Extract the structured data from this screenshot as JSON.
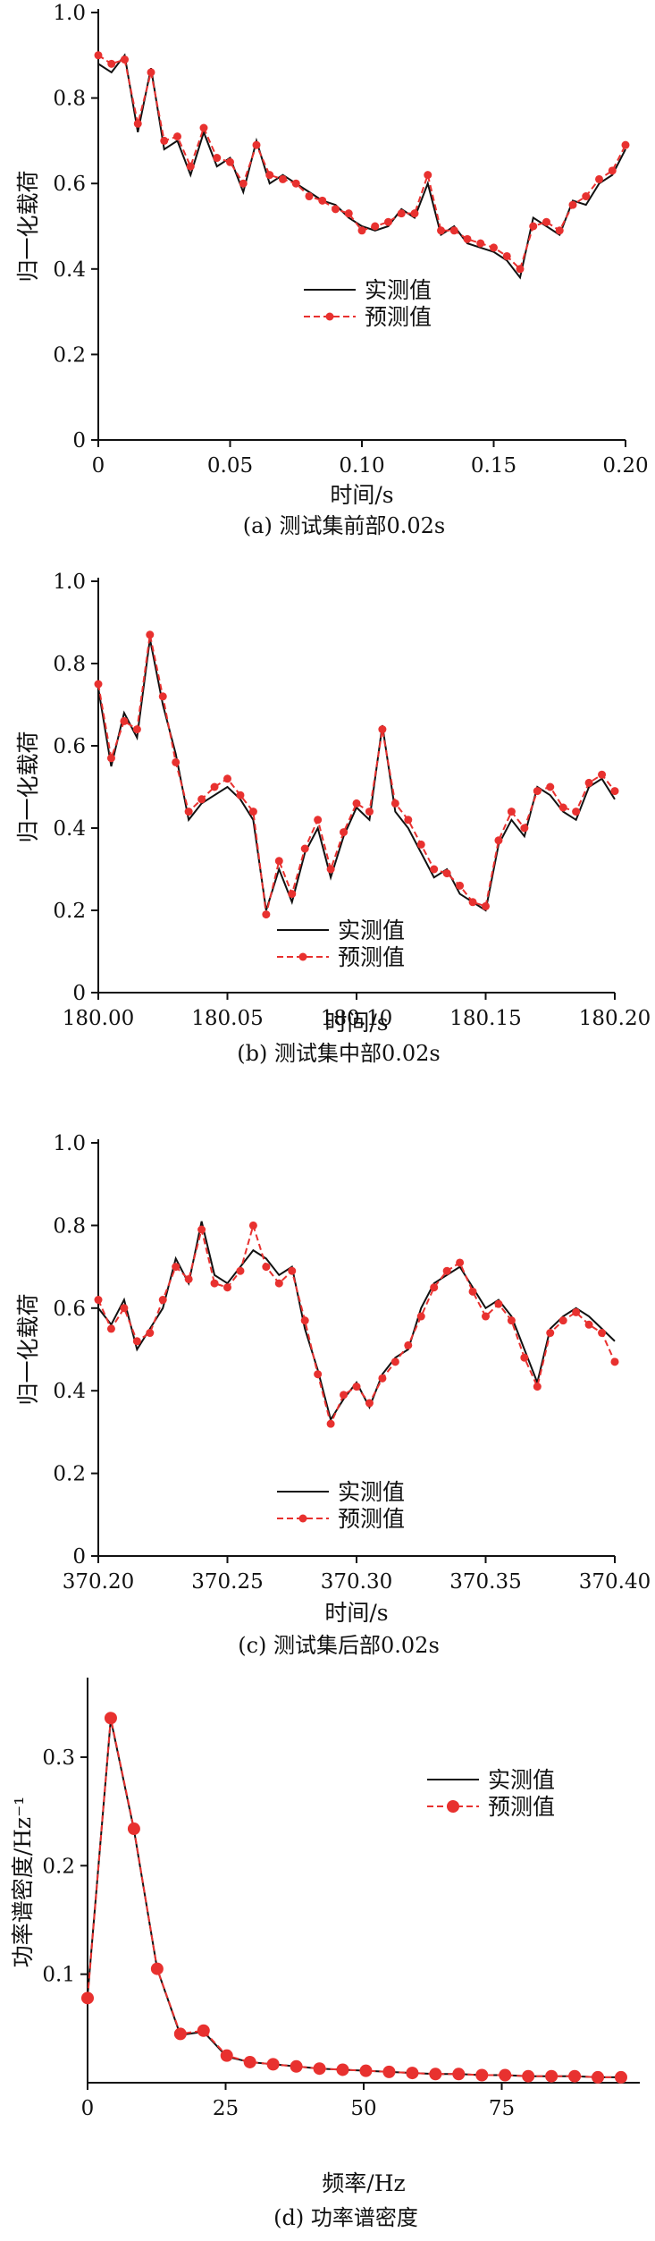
{
  "colors": {
    "measured": "#111111",
    "predicted": "#e8312f",
    "axis": "#111111"
  },
  "legend": {
    "measured": "实测值",
    "predicted": "预测值"
  },
  "chart_data": [
    {
      "id": "a",
      "type": "line",
      "caption": "(a) 测试集前部0.02s",
      "xlabel": "时间/s",
      "ylabel": "归一化载荷",
      "xlim": [
        0,
        0.2
      ],
      "ylim": [
        0,
        1.0
      ],
      "xticks": [
        "0",
        "0.05",
        "0.10",
        "0.15",
        "0.20"
      ],
      "yticks": [
        "0",
        "0.2",
        "0.4",
        "0.6",
        "0.8",
        "1.0"
      ],
      "legend_position": "center",
      "series": [
        {
          "name": "实测值",
          "style": "solid",
          "x": [
            0,
            0.005,
            0.01,
            0.015,
            0.02,
            0.025,
            0.03,
            0.035,
            0.04,
            0.045,
            0.05,
            0.055,
            0.06,
            0.065,
            0.07,
            0.075,
            0.08,
            0.085,
            0.09,
            0.095,
            0.1,
            0.105,
            0.11,
            0.115,
            0.12,
            0.125,
            0.13,
            0.135,
            0.14,
            0.145,
            0.15,
            0.155,
            0.16,
            0.165,
            0.17,
            0.175,
            0.18,
            0.185,
            0.19,
            0.195,
            0.2
          ],
          "y": [
            0.88,
            0.86,
            0.9,
            0.72,
            0.87,
            0.68,
            0.7,
            0.62,
            0.72,
            0.64,
            0.66,
            0.58,
            0.7,
            0.6,
            0.62,
            0.6,
            0.58,
            0.56,
            0.55,
            0.52,
            0.5,
            0.49,
            0.5,
            0.54,
            0.52,
            0.6,
            0.48,
            0.5,
            0.46,
            0.45,
            0.44,
            0.42,
            0.38,
            0.52,
            0.5,
            0.48,
            0.56,
            0.55,
            0.6,
            0.62,
            0.68
          ]
        },
        {
          "name": "预测值",
          "style": "dashed-dot",
          "x": [
            0,
            0.005,
            0.01,
            0.015,
            0.02,
            0.025,
            0.03,
            0.035,
            0.04,
            0.045,
            0.05,
            0.055,
            0.06,
            0.065,
            0.07,
            0.075,
            0.08,
            0.085,
            0.09,
            0.095,
            0.1,
            0.105,
            0.11,
            0.115,
            0.12,
            0.125,
            0.13,
            0.135,
            0.14,
            0.145,
            0.15,
            0.155,
            0.16,
            0.165,
            0.17,
            0.175,
            0.18,
            0.185,
            0.19,
            0.195,
            0.2
          ],
          "y": [
            0.9,
            0.88,
            0.89,
            0.74,
            0.86,
            0.7,
            0.71,
            0.64,
            0.73,
            0.66,
            0.65,
            0.6,
            0.69,
            0.62,
            0.61,
            0.6,
            0.57,
            0.56,
            0.54,
            0.53,
            0.49,
            0.5,
            0.51,
            0.53,
            0.53,
            0.62,
            0.49,
            0.49,
            0.47,
            0.46,
            0.45,
            0.43,
            0.4,
            0.5,
            0.51,
            0.49,
            0.55,
            0.57,
            0.61,
            0.63,
            0.69
          ]
        }
      ]
    },
    {
      "id": "b",
      "type": "line",
      "caption": "(b) 测试集中部0.02s",
      "xlabel": "时间/s",
      "ylabel": "归一化载荷",
      "xlim": [
        180.0,
        180.2
      ],
      "ylim": [
        0,
        1.0
      ],
      "xticks": [
        "180.00",
        "180.05",
        "180.10",
        "180.15",
        "180.20"
      ],
      "yticks": [
        "0",
        "0.2",
        "0.4",
        "0.6",
        "0.8",
        "1.0"
      ],
      "legend_position": "bottom-center",
      "series": [
        {
          "name": "实测值",
          "style": "solid",
          "x": [
            180.0,
            180.005,
            180.01,
            180.015,
            180.02,
            180.025,
            180.03,
            180.035,
            180.04,
            180.045,
            180.05,
            180.055,
            180.06,
            180.065,
            180.07,
            180.075,
            180.08,
            180.085,
            180.09,
            180.095,
            180.1,
            180.105,
            180.11,
            180.115,
            180.12,
            180.125,
            180.13,
            180.135,
            180.14,
            180.145,
            180.15,
            180.155,
            180.16,
            180.165,
            180.17,
            180.175,
            180.18,
            180.185,
            180.19,
            180.195,
            180.2
          ],
          "y": [
            0.74,
            0.55,
            0.68,
            0.62,
            0.86,
            0.7,
            0.58,
            0.42,
            0.46,
            0.48,
            0.5,
            0.47,
            0.42,
            0.2,
            0.3,
            0.22,
            0.34,
            0.4,
            0.28,
            0.38,
            0.45,
            0.42,
            0.65,
            0.44,
            0.4,
            0.34,
            0.28,
            0.3,
            0.24,
            0.22,
            0.2,
            0.36,
            0.42,
            0.38,
            0.5,
            0.48,
            0.44,
            0.42,
            0.5,
            0.52,
            0.47
          ]
        },
        {
          "name": "预测值",
          "style": "dashed-dot",
          "x": [
            180.0,
            180.005,
            180.01,
            180.015,
            180.02,
            180.025,
            180.03,
            180.035,
            180.04,
            180.045,
            180.05,
            180.055,
            180.06,
            180.065,
            180.07,
            180.075,
            180.08,
            180.085,
            180.09,
            180.095,
            180.1,
            180.105,
            180.11,
            180.115,
            180.12,
            180.125,
            180.13,
            180.135,
            180.14,
            180.145,
            180.15,
            180.155,
            180.16,
            180.165,
            180.17,
            180.175,
            180.18,
            180.185,
            180.19,
            180.195,
            180.2
          ],
          "y": [
            0.75,
            0.57,
            0.66,
            0.64,
            0.87,
            0.72,
            0.56,
            0.44,
            0.47,
            0.5,
            0.52,
            0.48,
            0.44,
            0.19,
            0.32,
            0.24,
            0.35,
            0.42,
            0.3,
            0.39,
            0.46,
            0.44,
            0.64,
            0.46,
            0.42,
            0.36,
            0.3,
            0.29,
            0.26,
            0.22,
            0.21,
            0.37,
            0.44,
            0.4,
            0.49,
            0.5,
            0.45,
            0.44,
            0.51,
            0.53,
            0.49
          ]
        }
      ]
    },
    {
      "id": "c",
      "type": "line",
      "caption": "(c) 测试集后部0.02s",
      "xlabel": "时间/s",
      "ylabel": "归一化载荷",
      "xlim": [
        370.2,
        370.4
      ],
      "ylim": [
        0,
        1.0
      ],
      "xticks": [
        "370.20",
        "370.25",
        "370.30",
        "370.35",
        "370.40"
      ],
      "yticks": [
        "0",
        "0.2",
        "0.4",
        "0.6",
        "0.8",
        "1.0"
      ],
      "legend_position": "bottom-center",
      "series": [
        {
          "name": "实测值",
          "style": "solid",
          "x": [
            370.2,
            370.205,
            370.21,
            370.215,
            370.22,
            370.225,
            370.23,
            370.235,
            370.24,
            370.245,
            370.25,
            370.255,
            370.26,
            370.265,
            370.27,
            370.275,
            370.28,
            370.285,
            370.29,
            370.295,
            370.3,
            370.305,
            370.31,
            370.315,
            370.32,
            370.325,
            370.33,
            370.335,
            370.34,
            370.345,
            370.35,
            370.355,
            370.36,
            370.365,
            370.37,
            370.375,
            370.38,
            370.385,
            370.39,
            370.395,
            370.4
          ],
          "y": [
            0.6,
            0.56,
            0.62,
            0.5,
            0.55,
            0.6,
            0.72,
            0.66,
            0.81,
            0.68,
            0.66,
            0.7,
            0.74,
            0.72,
            0.68,
            0.7,
            0.55,
            0.45,
            0.33,
            0.38,
            0.42,
            0.36,
            0.44,
            0.48,
            0.5,
            0.6,
            0.66,
            0.68,
            0.7,
            0.65,
            0.6,
            0.62,
            0.58,
            0.5,
            0.42,
            0.55,
            0.58,
            0.6,
            0.58,
            0.55,
            0.52
          ]
        },
        {
          "name": "预测值",
          "style": "dashed-dot",
          "x": [
            370.2,
            370.205,
            370.21,
            370.215,
            370.22,
            370.225,
            370.23,
            370.235,
            370.24,
            370.245,
            370.25,
            370.255,
            370.26,
            370.265,
            370.27,
            370.275,
            370.28,
            370.285,
            370.29,
            370.295,
            370.3,
            370.305,
            370.31,
            370.315,
            370.32,
            370.325,
            370.33,
            370.335,
            370.34,
            370.345,
            370.35,
            370.355,
            370.36,
            370.365,
            370.37,
            370.375,
            370.38,
            370.385,
            370.39,
            370.395,
            370.4
          ],
          "y": [
            0.62,
            0.55,
            0.6,
            0.52,
            0.54,
            0.62,
            0.7,
            0.67,
            0.79,
            0.66,
            0.65,
            0.69,
            0.8,
            0.7,
            0.66,
            0.69,
            0.57,
            0.44,
            0.32,
            0.39,
            0.41,
            0.37,
            0.43,
            0.47,
            0.51,
            0.58,
            0.65,
            0.69,
            0.71,
            0.64,
            0.58,
            0.61,
            0.57,
            0.48,
            0.41,
            0.54,
            0.57,
            0.59,
            0.56,
            0.54,
            0.47
          ]
        }
      ]
    },
    {
      "id": "d",
      "type": "line",
      "caption": "(d) 功率谱密度",
      "xlabel": "频率/Hz",
      "ylabel": "功率谱密度/Hz⁻¹",
      "xlim": [
        0,
        100
      ],
      "ylim": [
        0,
        0.37
      ],
      "xticks": [
        "0",
        "25",
        "50",
        "75"
      ],
      "xtick_values": [
        0,
        25,
        50,
        75
      ],
      "yticks": [
        "0.1",
        "0.2",
        "0.3"
      ],
      "ytick_values": [
        0.1,
        0.2,
        0.3
      ],
      "legend_position": "top-right",
      "series": [
        {
          "name": "实测值",
          "style": "solid",
          "x": [
            0,
            4.2,
            8.4,
            12.6,
            16.8,
            21,
            25.2,
            29.4,
            33.6,
            37.8,
            42,
            46.2,
            50.4,
            54.6,
            58.8,
            63,
            67.2,
            71.4,
            75.6,
            79.8,
            84,
            88.2,
            92.4,
            96.6
          ],
          "y": [
            0.08,
            0.335,
            0.233,
            0.105,
            0.044,
            0.047,
            0.024,
            0.019,
            0.017,
            0.015,
            0.013,
            0.012,
            0.011,
            0.01,
            0.009,
            0.008,
            0.008,
            0.007,
            0.007,
            0.006,
            0.006,
            0.006,
            0.005,
            0.005
          ]
        },
        {
          "name": "预测值",
          "style": "dashed-dot",
          "x": [
            0,
            4.2,
            8.4,
            12.6,
            16.8,
            21,
            25.2,
            29.4,
            33.6,
            37.8,
            42,
            46.2,
            50.4,
            54.6,
            58.8,
            63,
            67.2,
            71.4,
            75.6,
            79.8,
            84,
            88.2,
            92.4,
            96.6
          ],
          "y": [
            0.078,
            0.336,
            0.234,
            0.105,
            0.045,
            0.048,
            0.025,
            0.019,
            0.017,
            0.015,
            0.013,
            0.012,
            0.011,
            0.01,
            0.009,
            0.008,
            0.008,
            0.007,
            0.007,
            0.006,
            0.006,
            0.006,
            0.005,
            0.005
          ]
        }
      ]
    }
  ]
}
